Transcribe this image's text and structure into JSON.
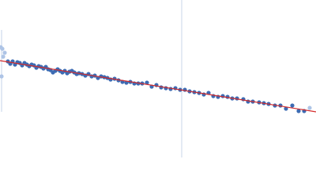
{
  "chart_data": {
    "type": "scatter",
    "xlim": [
      0,
      400
    ],
    "ylim": [
      0,
      200
    ],
    "series": [
      {
        "color": "#aec4e6",
        "x": [
          1,
          3,
          4,
          6,
          2,
          392
        ],
        "values": [
          140,
          138,
          128,
          133,
          103,
          63
        ]
      },
      {
        "color": "#3d6bb3",
        "x": [
          10,
          13,
          16,
          19,
          22,
          25,
          28,
          31,
          34,
          37,
          40,
          43,
          46,
          49,
          52,
          55,
          58,
          61,
          64,
          67,
          70,
          73,
          76,
          79,
          82,
          85,
          88,
          91,
          94,
          97,
          100,
          104,
          108,
          112,
          116,
          120,
          124,
          128,
          132,
          136,
          140,
          145,
          150,
          155,
          160,
          165,
          170,
          175,
          180,
          186,
          192,
          198,
          204,
          210,
          216,
          222,
          228,
          234,
          240,
          246,
          252,
          258,
          264,
          270,
          276,
          282,
          288,
          294,
          300,
          308,
          314,
          320,
          328,
          334,
          340,
          348,
          355,
          362,
          370,
          378,
          385
        ],
        "values": [
          122,
          119,
          122,
          118,
          121,
          120,
          117,
          120,
          118,
          116,
          118,
          117,
          114,
          116,
          115,
          113,
          115,
          112,
          111,
          108,
          110,
          112,
          110,
          108,
          110,
          107,
          109,
          110,
          108,
          106,
          107,
          106,
          104,
          106,
          103,
          104,
          101,
          103,
          102,
          101,
          99,
          100,
          98,
          96,
          95,
          96,
          94,
          94,
          94,
          95,
          90,
          92,
          89,
          88,
          87,
          88,
          86,
          86,
          84,
          83,
          82,
          80,
          82,
          78,
          77,
          78,
          77,
          75,
          75,
          74,
          71,
          71,
          70,
          69,
          68,
          66,
          66,
          62,
          66,
          59,
          59
        ]
      }
    ],
    "fit": {
      "color": "#d42a2a",
      "x": [
        0,
        400
      ],
      "values": [
        123,
        58
      ]
    },
    "vline": {
      "color": "#c9d5ea",
      "x": 230
    }
  }
}
